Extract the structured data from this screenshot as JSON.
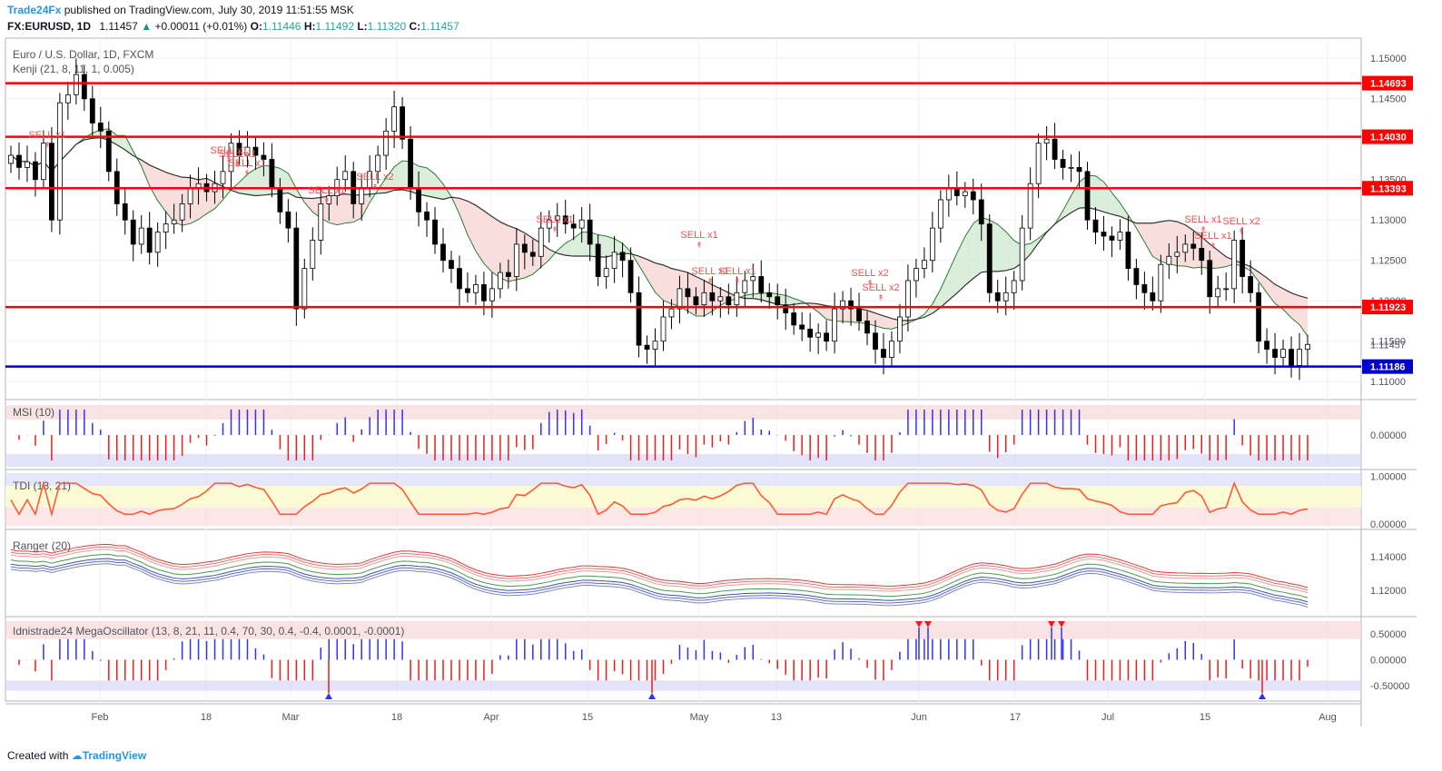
{
  "header": {
    "brand": "Trade24Fx",
    "published": "published on TradingView.com, July 30, 2019 11:51:55 MSK",
    "symbol": "FX:EURUSD, 1D",
    "last": "1.11457",
    "change": "+0.00011 (+0.01%)",
    "o_label": "O:",
    "o": "1.11446",
    "h_label": "H:",
    "h": "1.11492",
    "l_label": "L:",
    "l": "1.11320",
    "c_label": "C:",
    "c": "1.11457"
  },
  "footer": {
    "created": "Created with",
    "tv": "TradingView"
  },
  "colors": {
    "up": "#ffffff",
    "down": "#000000",
    "red_line": "#ff0000",
    "blue_line": "#0000cc",
    "signal": "#ef5350",
    "green_wick": "#4caf50",
    "blue_hist": "#3030ff"
  },
  "chart_data": [
    {
      "type": "candlestick",
      "title": "Euro / U.S. Dollar, 1D, FXCM",
      "indicator_label": "Kenji (21, 8, 11, 1, 0.005)",
      "x_ticks": [
        "Feb",
        "18",
        "Mar",
        "18",
        "Apr",
        "15",
        "May",
        "13",
        "Jun",
        "17",
        "Jul",
        "15",
        "Aug"
      ],
      "y_ticks": [
        1.15,
        1.145,
        1.14,
        1.135,
        1.13,
        1.125,
        1.12,
        1.115,
        1.11
      ],
      "y_tick_labels": [
        "1.15000",
        "1.14500",
        "1.14000",
        "1.13500",
        "1.13000",
        "1.12500",
        "1.12000",
        "1.11500",
        "1.11000"
      ],
      "ylim": [
        1.108,
        1.1525
      ],
      "horizontal_levels": [
        {
          "value": 1.14693,
          "label": "1.14693",
          "color": "red"
        },
        {
          "value": 1.1403,
          "label": "1.14030",
          "color": "red"
        },
        {
          "value": 1.13393,
          "label": "1.13393",
          "color": "red"
        },
        {
          "value": 1.11923,
          "label": "1.11923",
          "color": "red"
        },
        {
          "value": 1.11186,
          "label": "1.11186",
          "color": "blue"
        }
      ],
      "last_price_label": "1.11457",
      "close": [
        1.138,
        1.1365,
        1.1372,
        1.135,
        1.1395,
        1.13,
        1.1445,
        1.1455,
        1.148,
        1.145,
        1.142,
        1.141,
        1.136,
        1.132,
        1.13,
        1.127,
        1.129,
        1.126,
        1.1285,
        1.1295,
        1.13,
        1.132,
        1.134,
        1.1345,
        1.1335,
        1.1345,
        1.136,
        1.1395,
        1.138,
        1.139,
        1.138,
        1.1375,
        1.134,
        1.131,
        1.129,
        1.119,
        1.124,
        1.1275,
        1.132,
        1.133,
        1.135,
        1.136,
        1.132,
        1.134,
        1.136,
        1.138,
        1.141,
        1.144,
        1.14,
        1.134,
        1.131,
        1.13,
        1.127,
        1.125,
        1.124,
        1.1215,
        1.121,
        1.122,
        1.12,
        1.1215,
        1.1235,
        1.123,
        1.127,
        1.126,
        1.1255,
        1.129,
        1.13,
        1.1305,
        1.1295,
        1.129,
        1.13,
        1.127,
        1.123,
        1.124,
        1.126,
        1.125,
        1.121,
        1.1145,
        1.114,
        1.115,
        1.118,
        1.119,
        1.1215,
        1.1205,
        1.1195,
        1.121,
        1.12,
        1.1205,
        1.1195,
        1.121,
        1.1225,
        1.123,
        1.121,
        1.1205,
        1.1195,
        1.1185,
        1.117,
        1.1165,
        1.1155,
        1.116,
        1.115,
        1.119,
        1.12,
        1.119,
        1.1175,
        1.116,
        1.114,
        1.113,
        1.115,
        1.118,
        1.1225,
        1.124,
        1.125,
        1.129,
        1.1325,
        1.134,
        1.133,
        1.1335,
        1.1325,
        1.1295,
        1.121,
        1.12,
        1.121,
        1.1225,
        1.129,
        1.1345,
        1.1395,
        1.14,
        1.1375,
        1.1365,
        1.1365,
        1.136,
        1.13,
        1.1285,
        1.128,
        1.1275,
        1.1285,
        1.124,
        1.122,
        1.121,
        1.12,
        1.1245,
        1.1255,
        1.126,
        1.127,
        1.1265,
        1.125,
        1.1205,
        1.1215,
        1.1215,
        1.1275,
        1.123,
        1.121,
        1.115,
        1.114,
        1.113,
        1.114,
        1.112,
        1.114,
        1.1146
      ]
    },
    {
      "type": "bar",
      "title": "MSI (10)",
      "y_tick_labels": [
        "0.00000"
      ],
      "ylim": [
        -1,
        1
      ],
      "band_colors": [
        "#f8d7d7",
        "#d7d7f8"
      ]
    },
    {
      "type": "line",
      "title": "TDI (13, 21)",
      "y_tick_labels": [
        "1.00000",
        "0.00000"
      ],
      "ylim": [
        -0.1,
        1.1
      ]
    },
    {
      "type": "line",
      "title": "Ranger (20)",
      "y_tick_labels": [
        "1.14000",
        "1.12000"
      ],
      "ylim": [
        1.105,
        1.155
      ]
    },
    {
      "type": "bar",
      "title": "Idnistrade24 MegaOscillator (13, 8, 21, 11, 0.4, 70, 30, 0.4, -0.4, 0.0001, -0.0001)",
      "y_tick_labels": [
        "0.50000",
        "0.00000",
        "-0.50000"
      ],
      "ylim": [
        -0.8,
        0.8
      ]
    }
  ],
  "signals": [
    "SELL x1",
    "SELL x1",
    "SELL x1",
    "SELL x1",
    "SELL x1",
    "SELL x2",
    "SELL x1",
    "SELL x1",
    "SELL x1",
    "SELL x1",
    "SELL x2",
    "SELL x2",
    "SELL x1",
    "SELL x1",
    "SELL x2"
  ]
}
